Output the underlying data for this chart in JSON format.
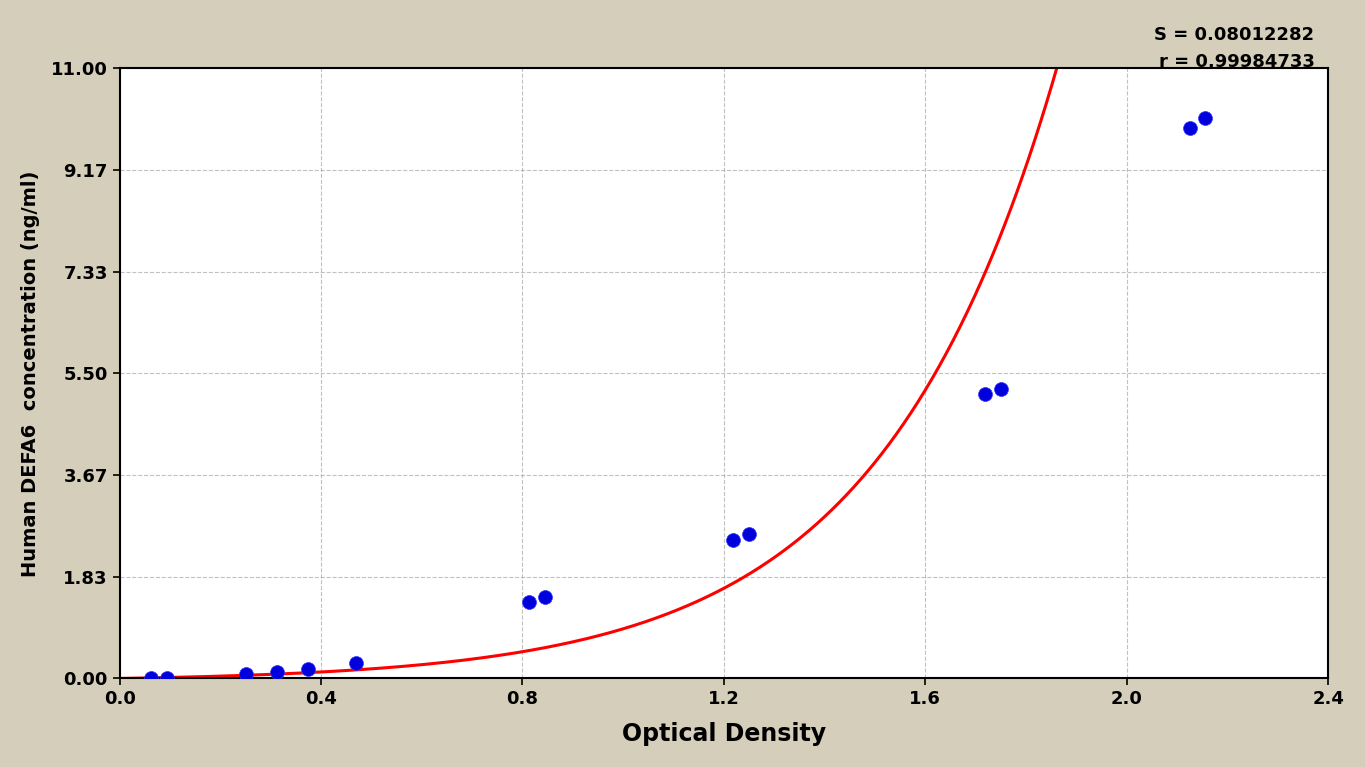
{
  "xlabel": "Optical Density",
  "ylabel": "Human DEFA6  concentration (ng/ml)",
  "background_color": "#d4cebb",
  "plot_bg_color": "#ffffff",
  "S_value": "S = 0.08012282",
  "r_value": "r = 0.99984733",
  "x_data": [
    0.063,
    0.094,
    0.25,
    0.313,
    0.375,
    0.469,
    0.813,
    0.844,
    1.219,
    1.25,
    1.719,
    1.75,
    2.125,
    2.156
  ],
  "y_data": [
    0.0,
    0.0,
    0.08,
    0.12,
    0.17,
    0.28,
    1.38,
    1.47,
    2.5,
    2.6,
    5.13,
    5.22,
    9.92,
    10.1
  ],
  "xlim": [
    0.0,
    2.4
  ],
  "ylim": [
    0.0,
    11.0
  ],
  "x_ticks": [
    0.0,
    0.4,
    0.8,
    1.2,
    1.6,
    2.0,
    2.4
  ],
  "y_ticks": [
    0.0,
    1.83,
    3.67,
    5.5,
    7.33,
    9.17,
    11.0
  ],
  "dot_color": "#0000dd",
  "line_color": "#ff0000",
  "dot_size": 100,
  "annotation_fontsize": 13,
  "xlabel_fontsize": 17,
  "ylabel_fontsize": 14,
  "tick_fontsize": 13,
  "grid_color": "#999999",
  "curve_extend_x": 2.37
}
